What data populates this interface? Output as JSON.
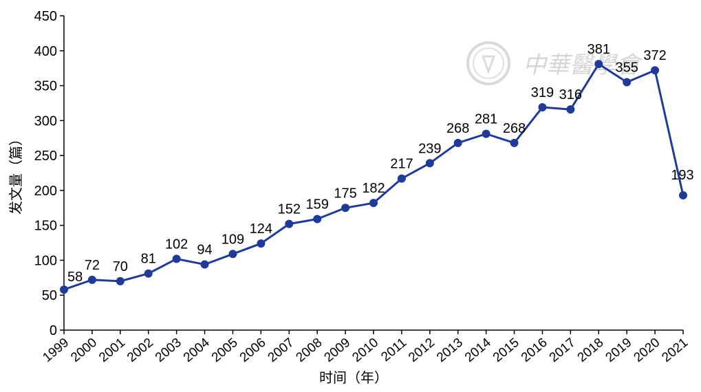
{
  "chart_data": {
    "type": "line",
    "xlabel": "时间（年）",
    "ylabel": "发文量（篇）",
    "ylim": [
      0,
      450
    ],
    "yticks": [
      0,
      50,
      100,
      150,
      200,
      250,
      300,
      350,
      400,
      450
    ],
    "categories": [
      "1999",
      "2000",
      "2001",
      "2002",
      "2003",
      "2004",
      "2005",
      "2006",
      "2007",
      "2008",
      "2009",
      "2010",
      "2011",
      "2012",
      "2013",
      "2014",
      "2015",
      "2016",
      "2017",
      "2018",
      "2019",
      "2020",
      "2021"
    ],
    "series": [
      {
        "values": [
          58,
          72,
          70,
          81,
          102,
          94,
          109,
          124,
          152,
          159,
          175,
          182,
          217,
          239,
          268,
          281,
          268,
          319,
          316,
          381,
          355,
          372,
          193
        ]
      }
    ],
    "data_labels": true,
    "grid": false,
    "line_color": "#1f3b9a"
  },
  "watermark": {
    "text": "中華醫學會"
  }
}
